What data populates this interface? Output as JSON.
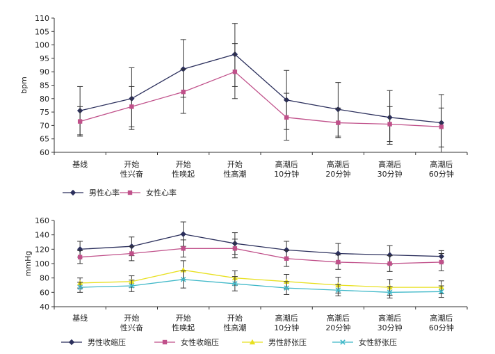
{
  "chart_data": [
    {
      "type": "line",
      "title": "",
      "xlabel": "",
      "ylabel": "bpm",
      "ylim": [
        60,
        110
      ],
      "yticks": [
        60,
        65,
        70,
        75,
        80,
        85,
        90,
        95,
        100,
        105,
        110
      ],
      "categories": [
        [
          "基线"
        ],
        [
          "开始",
          "性兴奋"
        ],
        [
          "开始",
          "性唤起"
        ],
        [
          "开始",
          "性高潮"
        ],
        [
          "高潮后",
          "10分钟"
        ],
        [
          "高潮后",
          "20分钟"
        ],
        [
          "高潮后",
          "30分钟"
        ],
        [
          "高潮后",
          "60分钟"
        ]
      ],
      "legend_position": "bottom-left",
      "series": [
        {
          "name": "男性心率",
          "color": "#2b2f5c",
          "marker": "diamond",
          "values": [
            75.5,
            80,
            91,
            96.5,
            79.5,
            76,
            73,
            71
          ],
          "error_high": [
            84.5,
            91.5,
            102,
            108,
            90.5,
            86,
            83,
            81.5
          ],
          "error_low": [
            66.5,
            68.5,
            80.5,
            84.5,
            68.5,
            66,
            63,
            60
          ]
        },
        {
          "name": "女性心率",
          "color": "#c0508a",
          "marker": "square",
          "values": [
            71.5,
            77,
            82.5,
            90,
            73,
            71,
            70.5,
            69.5
          ],
          "error_high": [
            77,
            84.5,
            91,
            100.5,
            82,
            76.5,
            77,
            76.5
          ],
          "error_low": [
            66,
            69.5,
            74.5,
            80,
            64.5,
            65.5,
            64,
            62
          ]
        }
      ]
    },
    {
      "type": "line",
      "title": "",
      "xlabel": "",
      "ylabel": "mmHg",
      "ylim": [
        40,
        160
      ],
      "yticks": [
        40,
        60,
        80,
        100,
        120,
        140,
        160
      ],
      "categories": [
        [
          "基线"
        ],
        [
          "开始",
          "性兴奋"
        ],
        [
          "开始",
          "性唤起"
        ],
        [
          "开始",
          "性高潮"
        ],
        [
          "高潮后",
          "10分钟"
        ],
        [
          "高潮后",
          "20分钟"
        ],
        [
          "高潮后",
          "30分钟"
        ],
        [
          "高潮后",
          "60分钟"
        ]
      ],
      "legend_position": "bottom",
      "series": [
        {
          "name": "男性收缩压",
          "color": "#2b2f5c",
          "marker": "diamond",
          "values": [
            120,
            124,
            141,
            128,
            119,
            114,
            112,
            110
          ],
          "error_high": [
            131,
            137,
            158,
            143,
            131,
            128,
            125,
            118
          ],
          "error_low": [
            109,
            111,
            124,
            113,
            107,
            100,
            99,
            102
          ]
        },
        {
          "name": "女性收缩压",
          "color": "#c0508a",
          "marker": "square",
          "values": [
            109,
            114,
            121,
            121,
            107,
            102,
            100,
            102
          ],
          "error_high": [
            118,
            124,
            133,
            134,
            118,
            112,
            111,
            114
          ],
          "error_low": [
            100,
            104,
            109,
            108,
            96,
            92,
            89,
            90
          ]
        },
        {
          "name": "男性舒张压",
          "color": "#e8e020",
          "marker": "triangle",
          "values": [
            73,
            75,
            91,
            80,
            75,
            70,
            67,
            67
          ],
          "error_high": [
            80,
            83,
            104,
            90,
            85,
            81,
            78,
            76
          ],
          "error_low": [
            66,
            67,
            78,
            70,
            65,
            59,
            56,
            58
          ]
        },
        {
          "name": "女性舒张压",
          "color": "#3fb8c8",
          "marker": "x",
          "values": [
            67,
            69,
            78,
            72,
            66,
            63,
            60,
            61
          ],
          "error_high": [
            74,
            77,
            90,
            82,
            75,
            71,
            68,
            69
          ],
          "error_low": [
            60,
            61,
            66,
            62,
            57,
            55,
            52,
            53
          ]
        }
      ]
    }
  ]
}
